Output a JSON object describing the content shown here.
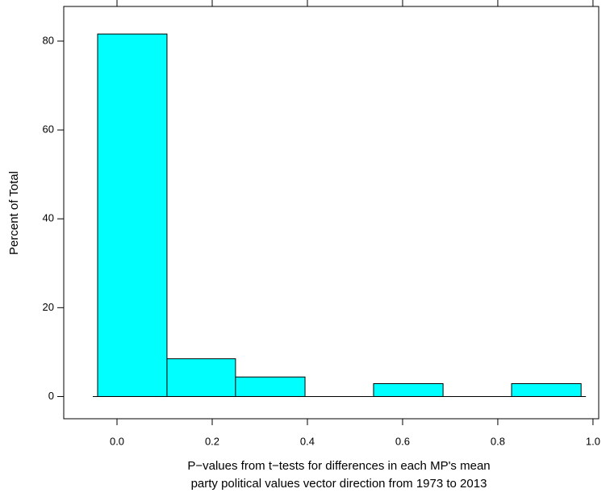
{
  "chart_data": {
    "type": "histogram",
    "xlabel": [
      "P−values from t−tests for differences in each MP's mean",
      "party political values vector direction from 1973 to 2013"
    ],
    "ylabel": "Percent of Total",
    "bins": [
      -0.0407,
      0.105,
      0.249,
      0.395,
      0.539,
      0.685,
      0.829,
      0.975
    ],
    "values": [
      81.6,
      8.5,
      4.4,
      0,
      2.9,
      0,
      2.9
    ],
    "color": "#00ffff",
    "xlim": [
      -0.1119,
      1.012
    ],
    "ylim": [
      -5,
      87.8
    ],
    "xticks": [
      {
        "value": 0,
        "label": "0.0"
      },
      0.2,
      0.4,
      0.6,
      0.8,
      {
        "value": 1,
        "label": "1.0"
      }
    ],
    "yticks": [
      0,
      20,
      40,
      60,
      80
    ]
  }
}
